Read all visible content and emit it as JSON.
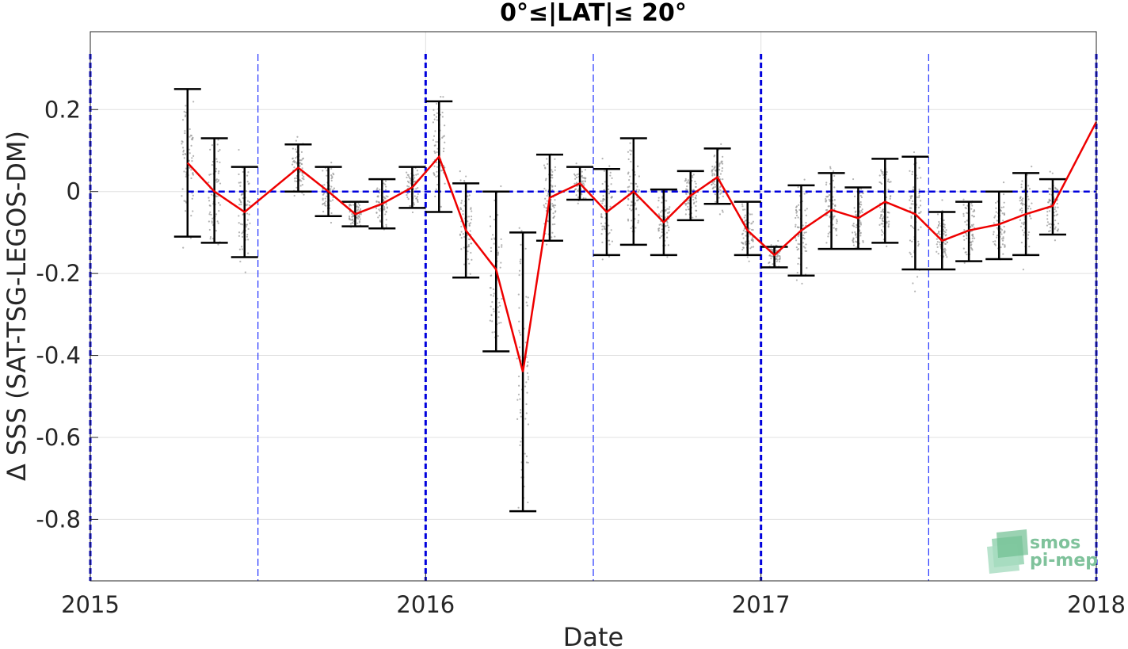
{
  "chart_data": {
    "type": "line",
    "title": "0°≤|LAT|≤ 20°",
    "xlabel": "Date",
    "ylabel": "Δ SSS (SAT-TSG-LEGOS-DM)",
    "xlim": [
      2015.0,
      2018.0
    ],
    "ylim": [
      -0.95,
      0.39
    ],
    "x_ticks": [
      2015,
      2016,
      2017,
      2018
    ],
    "x_tick_labels": [
      "2015",
      "2016",
      "2017",
      "2018"
    ],
    "y_ticks": [
      0.2,
      0,
      -0.2,
      -0.4,
      -0.6,
      -0.8
    ],
    "y_tick_labels": [
      "0.2",
      "0",
      "-0.2",
      "-0.4",
      "-0.6",
      "-0.8"
    ],
    "grid": true,
    "reference_line": {
      "y": 0,
      "color": "#0000dd",
      "style": "dashed"
    },
    "year_lines": {
      "x": [
        2015,
        2016,
        2017,
        2018
      ],
      "color": "#0000dd",
      "style": "dashed"
    },
    "half_year_lines": {
      "x": [
        2015.5,
        2016.5,
        2017.5
      ],
      "color": "#2233ff",
      "style": "dashed"
    },
    "series": [
      {
        "color": "#ee0000",
        "x": [
          2015.29,
          2015.37,
          2015.46,
          2015.62,
          2015.71,
          2015.79,
          2015.87,
          2015.96,
          2016.04,
          2016.12,
          2016.21,
          2016.29,
          2016.37,
          2016.46,
          2016.54,
          2016.62,
          2016.71,
          2016.79,
          2016.87,
          2016.96,
          2017.04,
          2017.12,
          2017.21,
          2017.29,
          2017.37,
          2017.46,
          2017.54,
          2017.62,
          2017.71,
          2017.79,
          2017.87,
          2018.0
        ],
        "values": [
          0.07,
          0.0,
          -0.05,
          0.058,
          0.0,
          -0.055,
          -0.03,
          0.01,
          0.085,
          -0.095,
          -0.19,
          -0.44,
          -0.015,
          0.02,
          -0.05,
          0.0,
          -0.075,
          -0.01,
          0.035,
          -0.095,
          -0.155,
          -0.095,
          -0.045,
          -0.065,
          -0.025,
          -0.055,
          -0.12,
          -0.095,
          -0.08,
          -0.055,
          -0.035,
          0.17
        ],
        "error_low": [
          -0.11,
          -0.125,
          -0.16,
          0.0,
          -0.06,
          -0.085,
          -0.09,
          -0.04,
          -0.05,
          -0.21,
          -0.39,
          -0.78,
          -0.12,
          -0.02,
          -0.155,
          -0.13,
          -0.155,
          -0.07,
          -0.03,
          -0.155,
          -0.185,
          -0.205,
          -0.14,
          -0.14,
          -0.125,
          -0.19,
          -0.19,
          -0.17,
          -0.165,
          -0.155,
          -0.105,
          null
        ],
        "error_high": [
          0.25,
          0.13,
          0.06,
          0.115,
          0.06,
          -0.025,
          0.03,
          0.06,
          0.22,
          0.02,
          0.0,
          -0.1,
          0.09,
          0.06,
          0.055,
          0.13,
          0.005,
          0.05,
          0.105,
          -0.025,
          -0.135,
          0.015,
          0.045,
          0.01,
          0.08,
          0.085,
          -0.05,
          -0.025,
          0.0,
          0.045,
          0.03,
          null
        ]
      }
    ],
    "scatter_color": "#999999",
    "error_bar_color": "#000000"
  },
  "logo": {
    "line1": "smos",
    "line2": "pi-mep"
  }
}
